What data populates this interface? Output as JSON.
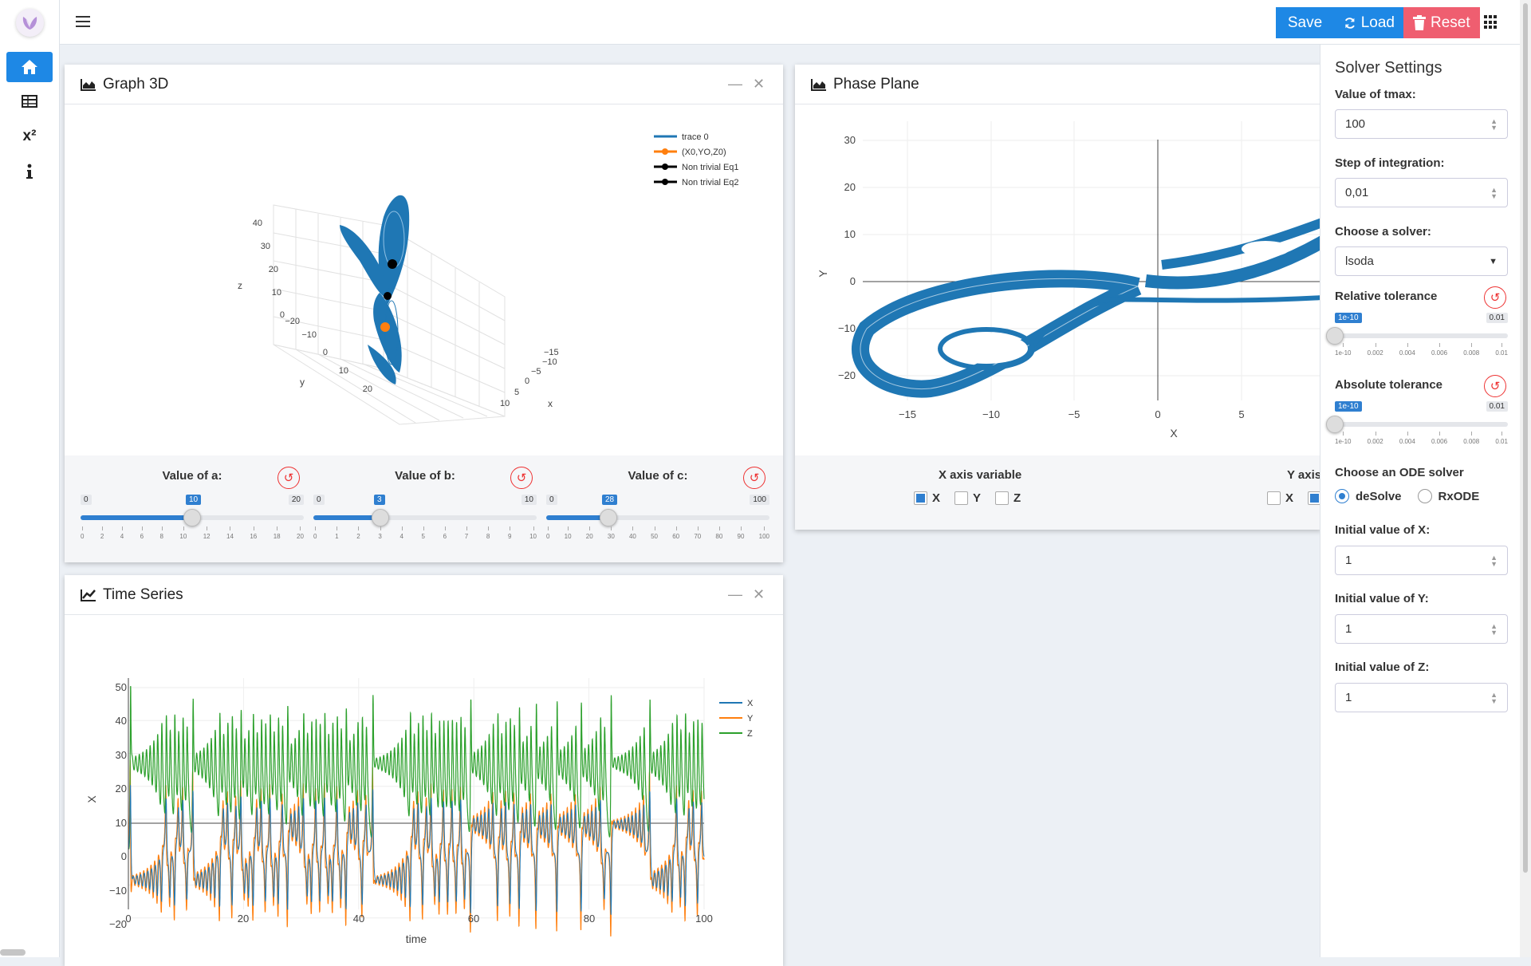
{
  "nav": {
    "items": [
      {
        "name": "home",
        "icon": "home-icon"
      },
      {
        "name": "table",
        "icon": "table-icon"
      },
      {
        "name": "equations",
        "label": "x²",
        "icon": "superscript-icon"
      },
      {
        "name": "info",
        "icon": "info-icon"
      }
    ]
  },
  "toolbar": {
    "save_label": "Save",
    "load_label": "Load",
    "reset_label": "Reset"
  },
  "colors": {
    "accent": "#1e88e5",
    "reset": "#ef5e70",
    "series_x": "#1f77b4",
    "series_y": "#ff7f0e",
    "series_z": "#2ca02c"
  },
  "graph3d": {
    "title": "Graph 3D",
    "legend": [
      "trace 0",
      "(X0,YO,Z0)",
      "Non trivial Eq1",
      "Non trivial Eq2"
    ],
    "axes": {
      "z_label": "z",
      "y_label": "y",
      "x_label": "x",
      "z_ticks": [
        "40",
        "30",
        "20",
        "10",
        "0"
      ],
      "y_ticks": [
        "−20",
        "−10",
        "0",
        "10",
        "20"
      ],
      "x_ticks": [
        "−15",
        "−10",
        "−5",
        "0",
        "5",
        "10"
      ]
    },
    "sliders": [
      {
        "label": "Value of a:",
        "min": "0",
        "max": "20",
        "value": "10",
        "fraction": 0.5,
        "ticks": [
          "0",
          "2",
          "4",
          "6",
          "8",
          "10",
          "12",
          "14",
          "16",
          "18",
          "20"
        ]
      },
      {
        "label": "Value of b:",
        "min": "0",
        "max": "10",
        "value": "3",
        "fraction": 0.3,
        "ticks": [
          "0",
          "1",
          "2",
          "3",
          "4",
          "5",
          "6",
          "7",
          "8",
          "9",
          "10"
        ]
      },
      {
        "label": "Value of c:",
        "min": "0",
        "max": "100",
        "value": "28",
        "fraction": 0.28,
        "ticks": [
          "0",
          "10",
          "20",
          "30",
          "40",
          "50",
          "60",
          "70",
          "80",
          "90",
          "100"
        ]
      }
    ]
  },
  "phase_plane": {
    "title": "Phase Plane",
    "xlabel": "X",
    "ylabel": "Y",
    "x_ticks": [
      "−15",
      "−10",
      "−5",
      "0",
      "5"
    ],
    "y_ticks": [
      "30",
      "20",
      "10",
      "0",
      "−10",
      "−20"
    ],
    "x_axis_variable_label": "X axis variable",
    "y_axis_variable_label": "Y axis",
    "x_options": [
      {
        "label": "X",
        "checked": true
      },
      {
        "label": "Y",
        "checked": false
      },
      {
        "label": "Z",
        "checked": false
      }
    ],
    "y_options": [
      {
        "label": "X",
        "checked": false
      }
    ]
  },
  "time_series": {
    "title": "Time Series",
    "xlabel": "time",
    "ylabel": "X",
    "legend": [
      "X",
      "Y",
      "Z"
    ]
  },
  "chart_data": [
    {
      "type": "line",
      "title": "Time Series",
      "xlabel": "time",
      "ylabel": "X",
      "xlim": [
        0,
        100
      ],
      "ylim": [
        -25,
        52
      ],
      "x_ticks": [
        "0",
        "20",
        "40",
        "60",
        "80",
        "100"
      ],
      "y_ticks": [
        "50",
        "40",
        "30",
        "20",
        "10",
        "0",
        "−10",
        "−20"
      ],
      "series": [
        {
          "name": "X",
          "color": "#1f77b4",
          "description": "oscillates roughly between -17 and 19, mostly hidden under Y"
        },
        {
          "name": "Y",
          "color": "#ff7f0e",
          "min": -23,
          "max": 18
        },
        {
          "name": "Z",
          "color": "#2ca02c",
          "min": 4,
          "max": 48
        }
      ],
      "legend": [
        "X",
        "Y",
        "Z"
      ]
    },
    {
      "type": "line",
      "title": "Phase Plane",
      "xlabel": "X",
      "ylabel": "Y",
      "xlim": [
        -18,
        10
      ],
      "ylim": [
        -23,
        32
      ],
      "series": [
        {
          "name": "trace",
          "color": "#1f77b4",
          "description": "Lorenz attractor butterfly loops around (-8,-8) and (8,8)"
        }
      ]
    }
  ],
  "settings": {
    "title": "Solver Settings",
    "tmax_label": "Value of tmax:",
    "tmax_value": "100",
    "step_label": "Step of integration:",
    "step_value": "0,01",
    "solver_label": "Choose a solver:",
    "solver_value": "lsoda",
    "rtol": {
      "label": "Relative tolerance",
      "value": "1e-10",
      "min": "1e-10",
      "max": "0.01",
      "fraction": 0.0,
      "ticks": [
        "1e-10",
        "0.002",
        "0.004",
        "0.006",
        "0.008",
        "0.01"
      ]
    },
    "atol": {
      "label": "Absolute tolerance",
      "value": "1e-10",
      "min": "1e-10",
      "max": "0.01",
      "fraction": 0.0,
      "ticks": [
        "1e-10",
        "0.002",
        "0.004",
        "0.006",
        "0.008",
        "0.01"
      ]
    },
    "ode_label": "Choose an ODE solver",
    "ode_options": [
      {
        "label": "deSolve",
        "selected": true
      },
      {
        "label": "RxODE",
        "selected": false
      }
    ],
    "x0_label": "Initial value of X:",
    "x0_value": "1",
    "y0_label": "Initial value of Y:",
    "y0_value": "1",
    "z0_label": "Initial value of Z:",
    "z0_value": "1"
  }
}
